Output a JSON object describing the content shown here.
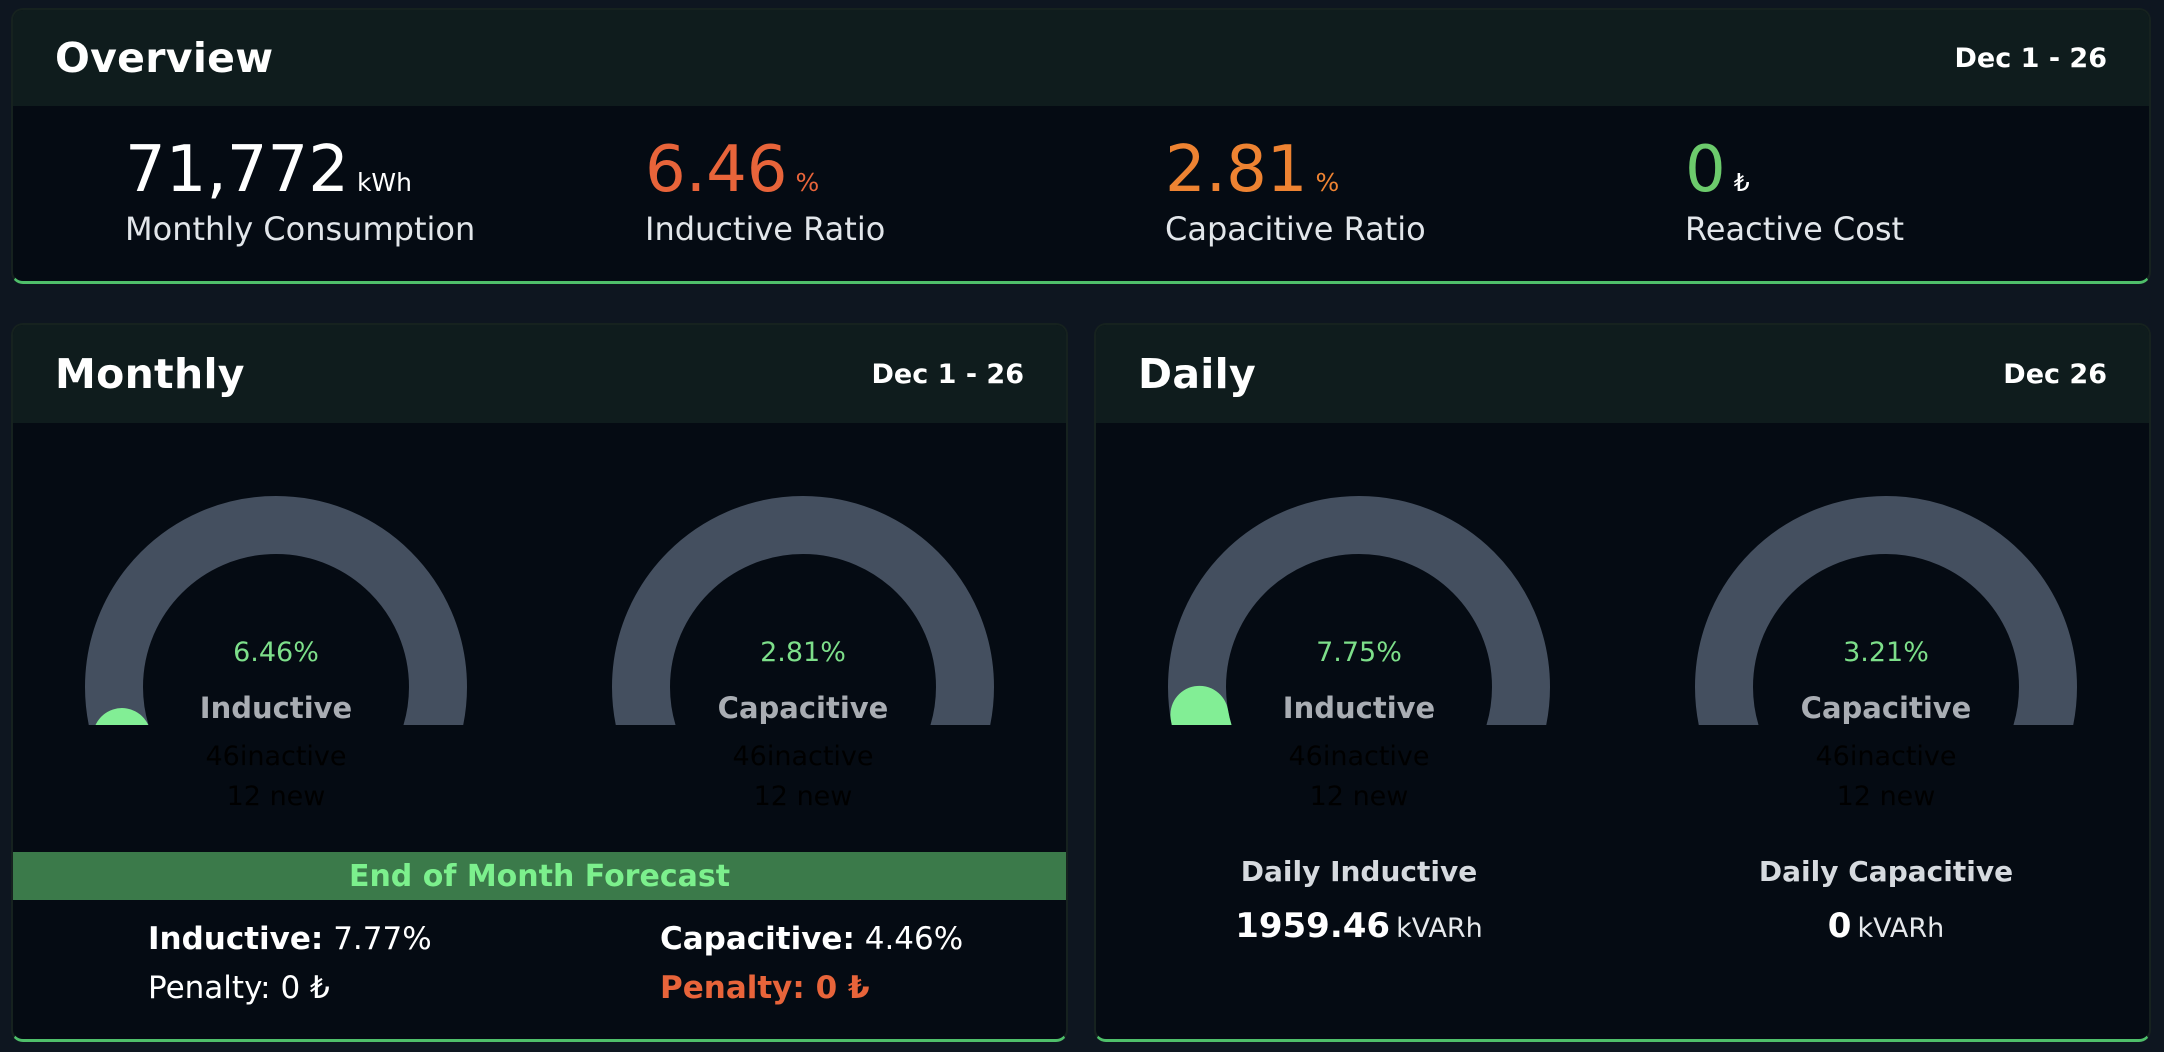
{
  "colors": {
    "gauge_fill": "#82ee95",
    "gauge_track": "#444f5f",
    "accent_green": "#6ccb6c",
    "accent_red": "#e8643a",
    "accent_orange": "#ee8332"
  },
  "overview": {
    "title": "Overview",
    "date": "Dec 1 - 26",
    "metrics": [
      {
        "value": "71,772",
        "unit": "kWh",
        "label": "Monthly Consumption",
        "color": "#ffffff"
      },
      {
        "value": "6.46",
        "unit": "%",
        "label": "Inductive Ratio",
        "color": "#e8643a"
      },
      {
        "value": "2.81",
        "unit": "%",
        "label": "Capacitive Ratio",
        "color": "#ee8332"
      },
      {
        "value": "0",
        "unit": "₺",
        "label": "Reactive Cost",
        "color": "#6ccb6c"
      }
    ]
  },
  "monthly": {
    "title": "Monthly",
    "date": "Dec 1 - 26",
    "gauges": [
      {
        "percent_text": "6.46%",
        "name": "Inductive",
        "ghost_line1": "46inactive",
        "ghost_line2": "12 new",
        "fraction": 0.1
      },
      {
        "percent_text": "2.81%",
        "name": "Capacitive",
        "ghost_line1": "46inactive",
        "ghost_line2": "12 new",
        "fraction": 0.05
      }
    ],
    "forecast": {
      "title": "End of Month Forecast",
      "inductive_label": "Inductive:",
      "inductive_value": "7.77%",
      "inductive_penalty": "Penalty: 0 ₺",
      "capacitive_label": "Capacitive:",
      "capacitive_value": "4.46%",
      "capacitive_penalty": "Penalty: 0 ₺"
    }
  },
  "daily": {
    "title": "Daily",
    "date": "Dec 26",
    "gauges": [
      {
        "percent_text": "7.75%",
        "name": "Inductive",
        "ghost_line1": "46inactive",
        "ghost_line2": "12 new",
        "fraction": 0.13
      },
      {
        "percent_text": "3.21%",
        "name": "Capacitive",
        "ghost_line1": "46inactive",
        "ghost_line2": "12 new",
        "fraction": 0.06
      }
    ],
    "stats": [
      {
        "label": "Daily Inductive",
        "value": "1959.46",
        "unit": "kVARh"
      },
      {
        "label": "Daily Capacitive",
        "value": "0",
        "unit": "kVARh"
      }
    ]
  }
}
